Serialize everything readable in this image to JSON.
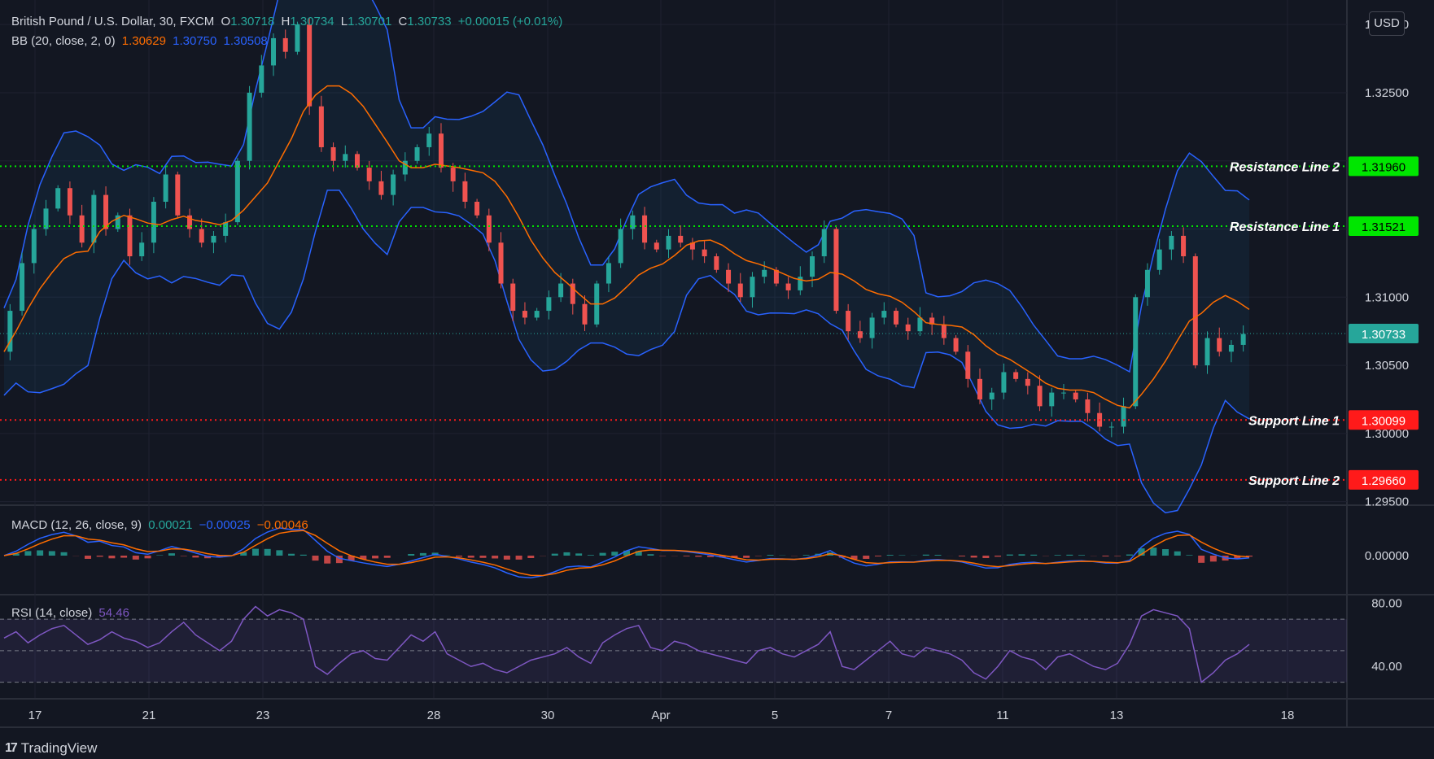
{
  "header": {
    "symbol": "British Pound / U.S. Dollar, 30, FXCM",
    "ohlc": [
      {
        "label": "O",
        "value": "1.30718"
      },
      {
        "label": "H",
        "value": "1.30734"
      },
      {
        "label": "L",
        "value": "1.30701"
      },
      {
        "label": "C",
        "value": "1.30733"
      }
    ],
    "change": "+0.00015 (+0.01%)",
    "bb_label": "BB (20, close, 2, 0)",
    "bb_values": [
      "1.30629",
      "1.30750",
      "1.30508"
    ],
    "macd_label": "MACD (12, 26, close, 9)",
    "macd_values": [
      "0.00021",
      "−0.00025",
      "−0.00046"
    ],
    "rsi_label": "RSI (14, close)",
    "rsi_value": "54.46",
    "currency_button": "USD",
    "brand": "TradingView"
  },
  "colors": {
    "background": "#131722",
    "grid": "#1f2230",
    "text": "#d1d4dc",
    "up": "#26a69a",
    "down": "#ef5350",
    "bb_band": "#2962ff",
    "bb_basis": "#ff6d00",
    "resistance": "#00e600",
    "support": "#ff1a1a",
    "price_tag": "#26a69a",
    "rsi": "#7e57c2",
    "macd_line": "#2962ff",
    "signal_line": "#ff6d00"
  },
  "chart_data": {
    "type": "line",
    "title": "British Pound / U.S. Dollar, 30, FXCM",
    "price_axis": {
      "ticks": [
        "1.33000",
        "1.32500",
        "1.31000",
        "1.30500",
        "1.30000",
        "1.29500"
      ],
      "ylim": [
        1.2948,
        1.3318
      ]
    },
    "x_axis": {
      "ticks": [
        "17",
        "21",
        "23",
        "28",
        "30",
        "Apr",
        "5",
        "7",
        "11",
        "13",
        "18"
      ]
    },
    "series": [
      {
        "name": "BB basis",
        "x": [
          "17",
          "21",
          "23",
          "28",
          "30",
          "Apr",
          "5",
          "7",
          "11",
          "13",
          "18"
        ],
        "values": [
          1.308,
          1.313,
          1.324,
          1.314,
          1.31,
          1.313,
          1.312,
          1.307,
          1.304,
          1.303,
          1.306
        ]
      }
    ],
    "price_series": [
      1.306,
      1.309,
      1.3125,
      1.315,
      1.3165,
      1.318,
      1.316,
      1.314,
      1.3175,
      1.315,
      1.316,
      1.313,
      1.314,
      1.317,
      1.319,
      1.316,
      1.315,
      1.314,
      1.3145,
      1.3155,
      1.32,
      1.325,
      1.327,
      1.329,
      1.328,
      1.33,
      1.324,
      1.321,
      1.32,
      1.3205,
      1.3195,
      1.3185,
      1.3175,
      1.319,
      1.32,
      1.321,
      1.322,
      1.3195,
      1.3185,
      1.317,
      1.316,
      1.314,
      1.311,
      1.309,
      1.3085,
      1.309,
      1.31,
      1.311,
      1.3095,
      1.308,
      1.311,
      1.3125,
      1.315,
      1.316,
      1.314,
      1.3135,
      1.3145,
      1.314,
      1.3135,
      1.313,
      1.312,
      1.311,
      1.31,
      1.3115,
      1.312,
      1.311,
      1.3105,
      1.3115,
      1.313,
      1.315,
      1.309,
      1.3075,
      1.307,
      1.3085,
      1.309,
      1.308,
      1.3075,
      1.3085,
      1.308,
      1.307,
      1.306,
      1.304,
      1.3025,
      1.303,
      1.3045,
      1.304,
      1.3035,
      1.302,
      1.303,
      1.303,
      1.3025,
      1.3015,
      1.3005,
      1.3005,
      1.302,
      1.31,
      1.312,
      1.3135,
      1.3145,
      1.313,
      1.305,
      1.307,
      1.306,
      1.3065,
      1.3073
    ],
    "horizontal_levels": [
      {
        "name": "Resistance Line 2",
        "value": 1.3196,
        "label": "1.31960",
        "kind": "resistance"
      },
      {
        "name": "Resistance Line 1",
        "value": 1.31521,
        "label": "1.31521",
        "kind": "resistance"
      },
      {
        "name": "Support Line 1",
        "value": 1.30099,
        "label": "1.30099",
        "kind": "support"
      },
      {
        "name": "Support Line 2",
        "value": 1.2966,
        "label": "1.29660",
        "kind": "support"
      }
    ],
    "last_price": {
      "value": 1.30733,
      "label": "1.30733"
    },
    "macd_axis": {
      "ticks": [
        "0.00000"
      ]
    },
    "rsi_axis": {
      "ticks": [
        "80.00",
        "40.00"
      ],
      "ylim": [
        20,
        85
      ],
      "upper_band": 70,
      "lower_band": 30,
      "middle": 50
    },
    "rsi_series": [
      58,
      62,
      55,
      60,
      64,
      66,
      60,
      54,
      57,
      62,
      58,
      56,
      52,
      55,
      62,
      68,
      60,
      55,
      50,
      56,
      70,
      78,
      72,
      76,
      74,
      70,
      40,
      35,
      42,
      48,
      50,
      45,
      44,
      52,
      60,
      56,
      62,
      48,
      44,
      40,
      42,
      38,
      36,
      40,
      44,
      46,
      48,
      52,
      46,
      42,
      55,
      60,
      64,
      66,
      52,
      50,
      56,
      54,
      50,
      48,
      46,
      44,
      42,
      50,
      52,
      48,
      46,
      50,
      54,
      62,
      40,
      38,
      44,
      50,
      56,
      48,
      46,
      52,
      50,
      48,
      44,
      36,
      32,
      40,
      50,
      46,
      44,
      38,
      46,
      48,
      44,
      40,
      38,
      42,
      54,
      72,
      76,
      74,
      72,
      64,
      30,
      36,
      44,
      48,
      54
    ]
  }
}
